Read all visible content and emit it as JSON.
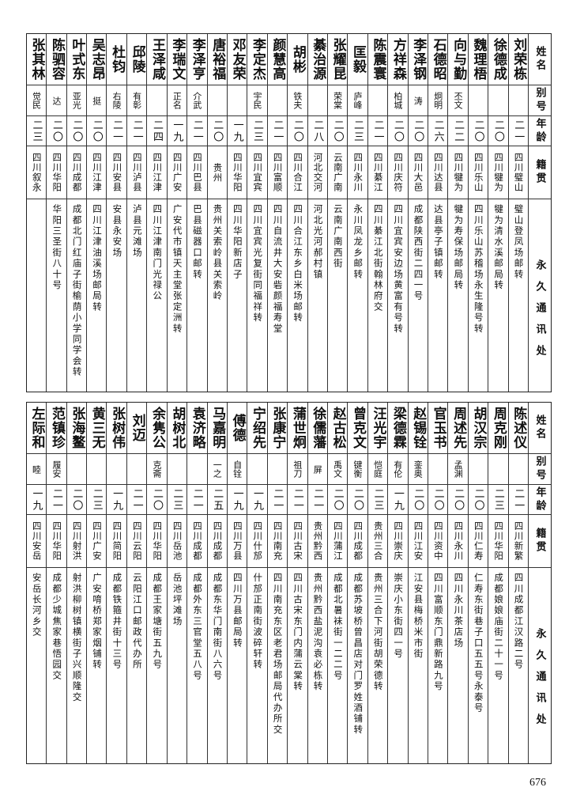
{
  "headers": {
    "name": "姓名",
    "alias": "别号",
    "age": "年龄",
    "origin": "籍贯",
    "address": "永久通讯处"
  },
  "top_table": [
    {
      "name": "刘荣栋",
      "alias": "",
      "age": "二一",
      "origin": "四川璧山",
      "address": "璧山登凤场邮转"
    },
    {
      "name": "徐德成",
      "alias": "",
      "age": "二〇",
      "origin": "四川犍为",
      "address": "犍为清水溪邮局转"
    },
    {
      "name": "魏理梧",
      "alias": "",
      "age": "二〇",
      "origin": "四川乐山",
      "address": "四川乐山苏稽场永生隆号转"
    },
    {
      "name": "向与勤",
      "alias": "丕文",
      "age": "二二",
      "origin": "四川犍为",
      "address": "犍为寿保场邮局转"
    },
    {
      "name": "石德昭",
      "alias": "炯明",
      "age": "二六",
      "origin": "四川达县",
      "address": "达县亭子镇邮转"
    },
    {
      "name": "李泽钢",
      "alias": "涛",
      "age": "二〇",
      "origin": "四川大邑",
      "address": "成都陕西街二四一号"
    },
    {
      "name": "方祥森",
      "alias": "柏城",
      "age": "二〇",
      "origin": "四川庆符",
      "address": "四川宜宾安边场黄富有号转"
    },
    {
      "name": "陈震寰",
      "alias": "",
      "age": "二一",
      "origin": "四川綦江",
      "address": "四川綦江北街翰林府交"
    },
    {
      "name": "匡毅",
      "alias": "庐峰",
      "age": "二三",
      "origin": "四川永川",
      "address": "永川凤龙乡邮转"
    },
    {
      "name": "张耀昆",
      "alias": "荣棠",
      "age": "二〇",
      "origin": "云南广南",
      "address": "云南广南西街"
    },
    {
      "name": "綦治源",
      "alias": "",
      "age": "二八",
      "origin": "河北交河",
      "address": "河北光河郝村镇"
    },
    {
      "name": "胡彬",
      "alias": "铁夫",
      "age": "二〇",
      "origin": "四川合江",
      "address": "四川合江东乡白米场邮转"
    },
    {
      "name": "颜慧高",
      "alias": "",
      "age": "二一",
      "origin": "四川富顺",
      "address": "四川自流井大安砦颜福寿堂"
    },
    {
      "name": "李定杰",
      "alias": "宇民",
      "age": "二三",
      "origin": "四川宜宾",
      "address": "四川宜宾光复街同福祥转"
    },
    {
      "name": "邓友荣",
      "alias": "",
      "age": "一九",
      "origin": "四川华阳",
      "address": "四川华阳新店子"
    },
    {
      "name": "唐裕福",
      "alias": "",
      "age": "二〇",
      "origin": "贵州",
      "address": "贵州关索岭县关索岭"
    },
    {
      "name": "李泽亨",
      "alias": "介武",
      "age": "二一",
      "origin": "四川巴县",
      "address": "巴县磁器口邮转"
    },
    {
      "name": "李瑞文",
      "alias": "正名",
      "age": "一九",
      "origin": "四川广安",
      "address": "广安代市镇天主堂张定洲转"
    },
    {
      "name": "王泽咸",
      "alias": "",
      "age": "二四",
      "origin": "四川江津",
      "address": "四川江津南门光禄公"
    },
    {
      "name": "邱陵",
      "alias": "有彰",
      "age": "二一",
      "origin": "四川泸县",
      "address": "泸县元滩场"
    },
    {
      "name": "杜钧",
      "alias": "右陵",
      "age": "二一",
      "origin": "四川安县",
      "address": "安县永安场"
    },
    {
      "name": "吴志昂",
      "alias": "挺",
      "age": "二〇",
      "origin": "四川江津",
      "address": "四川江津油溪场邮局转"
    },
    {
      "name": "叶式东",
      "alias": "亚光",
      "age": "二〇",
      "origin": "四川成都",
      "address": "成都北门红庙子街榆荫小学同学会转"
    },
    {
      "name": "陈驷容",
      "alias": "达",
      "age": "二〇",
      "origin": "四川华阳",
      "address": "华阳三圣街八十号"
    },
    {
      "name": "张其林",
      "alias": "觉民",
      "age": "二三",
      "origin": "四川叙永",
      "address": ""
    }
  ],
  "bottom_table": [
    {
      "name": "陈述仪",
      "alias": "",
      "age": "二一",
      "origin": "四川新繁",
      "address": "四川成都江汉路二号"
    },
    {
      "name": "周克刚",
      "alias": "",
      "age": "二三",
      "origin": "四川华阳",
      "address": "成都娘娘庙街二十一号"
    },
    {
      "name": "胡汉宗",
      "alias": "",
      "age": "二〇",
      "origin": "四川仁寿",
      "address": "仁寿东街巷子口五五号永泰号"
    },
    {
      "name": "周述先",
      "alias": "孟渊",
      "age": "二〇",
      "origin": "四川永川",
      "address": "四川永川茶店场"
    },
    {
      "name": "官玉书",
      "alias": "",
      "age": "二〇",
      "origin": "四川资中",
      "address": "四川富顺东门鼎新路九号"
    },
    {
      "name": "赵锡铨",
      "alias": "銮奥",
      "age": "二〇",
      "origin": "四川江安",
      "address": "江安县梅桥米市街"
    },
    {
      "name": "梁德霖",
      "alias": "有伦",
      "age": "一九",
      "origin": "四川崇庆",
      "address": "崇庆小东街四一号"
    },
    {
      "name": "汪光宇",
      "alias": "恺庭",
      "age": "二三",
      "origin": "贵州三合",
      "address": "贵州三合下河街胡荣德转"
    },
    {
      "name": "曾克文",
      "alias": "键衡",
      "age": "二〇",
      "origin": "四川成都",
      "address": "成都苏坡桥曾昌店对门罗姓酒铺转"
    },
    {
      "name": "赵古松",
      "alias": "禹文",
      "age": "二〇",
      "origin": "四川蒲江",
      "address": "成都北暑袜街一二二号"
    },
    {
      "name": "徐儒藩",
      "alias": "屏",
      "age": "二一",
      "origin": "贵州黔西",
      "address": "贵州黔西盐泥沟袁必栋转"
    },
    {
      "name": "蒲世炯",
      "alias": "祖刀",
      "age": "二一",
      "origin": "四川古宋",
      "address": "四川古宋东门内蒲云棠转"
    },
    {
      "name": "张康宁",
      "alias": "",
      "age": "二一",
      "origin": "四川南充",
      "address": "四川南充东区老君场邮局代办所交"
    },
    {
      "name": "宁绍先",
      "alias": "",
      "age": "一九",
      "origin": "四川什邡",
      "address": "什邡正南街波碎轩转"
    },
    {
      "name": "傅德",
      "alias": "自铨",
      "age": "一九",
      "origin": "四川万县",
      "address": "四川万县邮局转"
    },
    {
      "name": "马嘉明",
      "alias": "一之",
      "age": "二五",
      "origin": "四川成都",
      "address": "成都东华门南街八六号"
    },
    {
      "name": "袁济略",
      "alias": "",
      "age": "二一",
      "origin": "四川成都",
      "address": "成都外东三官堂五八号"
    },
    {
      "name": "胡树北",
      "alias": "",
      "age": "二三",
      "origin": "四川岳池",
      "address": "岳池坪滩场"
    },
    {
      "name": "余隽公",
      "alias": "克斋",
      "age": "二〇",
      "origin": "四川华阳",
      "address": "成都王家塘街五九号"
    },
    {
      "name": "刘迈",
      "alias": "",
      "age": "二一",
      "origin": "四川云阳",
      "address": "云阳江口邮政代办所"
    },
    {
      "name": "张树伟",
      "alias": "",
      "age": "一九",
      "origin": "四川简阳",
      "address": "成都铁箍井街十三号"
    },
    {
      "name": "黄三无",
      "alias": "",
      "age": "二三",
      "origin": "四川广安",
      "address": "广安唷桥郑家烟铺转"
    },
    {
      "name": "张海鳌",
      "alias": "",
      "age": "二〇",
      "origin": "四川射洪",
      "address": "射洪柳树镇横街子兴顺隆交"
    },
    {
      "name": "范镇珍",
      "alias": "履安",
      "age": "二一",
      "origin": "四川华阳",
      "address": "成都少城焦家巷悟园交"
    },
    {
      "name": "左际和",
      "alias": "睦",
      "age": "一九",
      "origin": "四川安岳",
      "address": "安岳长河乡交"
    }
  ],
  "page_number": "676"
}
